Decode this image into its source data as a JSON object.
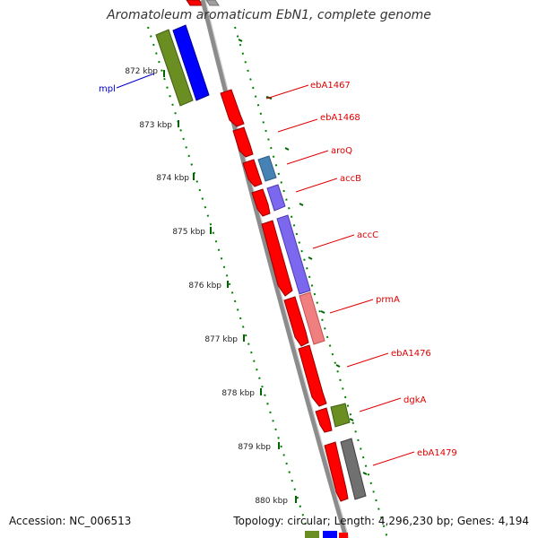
{
  "title": "Aromatoleum aromaticum EbN1, complete genome",
  "footer": {
    "accession": "Accession: NC_006513",
    "topology": "Topology: circular; Length: 4,296,230 bp; Genes: 4,194"
  },
  "colors": {
    "backbone": "#8c8c8c",
    "tick": "#008000",
    "label_line": "#e00000",
    "label_text": "#e00000",
    "left_label": "#0000cc"
  },
  "ticks": [
    "872 kbp",
    "873 kbp",
    "874 kbp",
    "875 kbp",
    "876 kbp",
    "877 kbp",
    "878 kbp",
    "879 kbp",
    "880 kbp"
  ],
  "left_features": [
    {
      "label": "mpl",
      "color": "#6b8e23"
    },
    {
      "label": "",
      "color": "#0000ff"
    }
  ],
  "genes": [
    {
      "label": "ebA1467",
      "color": "#ff0000"
    },
    {
      "label": "ebA1468",
      "color": "#ff0000"
    },
    {
      "label": "aroQ",
      "color": "#4682b4"
    },
    {
      "label": "accB",
      "color": "#7b68ee"
    },
    {
      "label": "accC",
      "color": "#7b68ee"
    },
    {
      "label": "prmA",
      "color": "#f08080"
    },
    {
      "label": "ebA1476",
      "color": "#ff0000"
    },
    {
      "label": "dgkA",
      "color": "#6b8e23"
    },
    {
      "label": "ebA1479",
      "color": "#707070"
    }
  ]
}
